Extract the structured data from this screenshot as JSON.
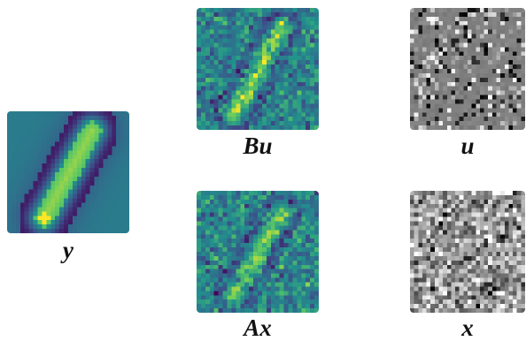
{
  "panels": {
    "y": {
      "label": "y",
      "colormap": "viridis"
    },
    "bu": {
      "label": "Bu",
      "colormap": "viridis"
    },
    "ax": {
      "label": "Ax",
      "colormap": "viridis"
    },
    "u": {
      "label": "u",
      "colormap": "gray"
    },
    "x": {
      "label": "x",
      "colormap": "gray"
    }
  },
  "colors": {
    "viridis_low": "#440154",
    "viridis_mid": "#21918c",
    "viridis_high": "#fde725"
  }
}
